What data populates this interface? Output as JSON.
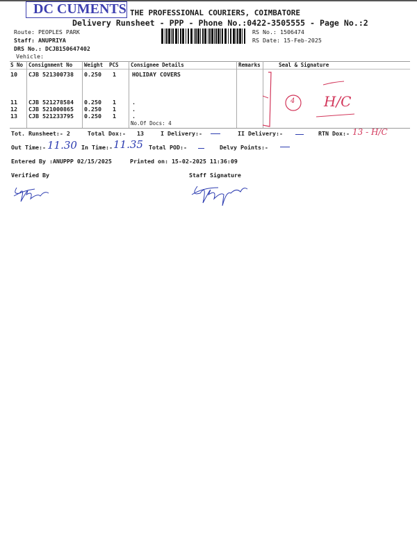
{
  "stamp": "DC CUMENTS",
  "header": {
    "company": "THE PROFESSIONAL COURIERS, COIMBATORE",
    "subtitle": "Delivery Runsheet - PPP - Phone No.:0422-3505555 - Page No.:2",
    "route": "Route: PEOPLES PARK",
    "staff": "Staff: ANUPRIYA",
    "drs": "DRS No.: DCJB150647402",
    "vehicle": "Vehicle:",
    "rs_no": "RS No.: 1506474",
    "rs_date": "RS Date: 15-Feb-2025"
  },
  "table": {
    "columns": [
      "S No",
      "Consignment No",
      "Weight",
      "PCS",
      "Consignee Details",
      "Remarks",
      "Seal & Signature"
    ],
    "rows": [
      {
        "sno": "10",
        "consignment": "CJB 521300738",
        "weight": "0.250",
        "pcs": "1",
        "consignee": "HOLIDAY COVERS"
      },
      {
        "sno": "11",
        "consignment": "CJB 521278584",
        "weight": "0.250",
        "pcs": "1",
        "consignee": "."
      },
      {
        "sno": "12",
        "consignment": "CJB 521000865",
        "weight": "0.250",
        "pcs": "1",
        "consignee": "."
      },
      {
        "sno": "13",
        "consignment": "CJB 521233795",
        "weight": "0.250",
        "pcs": "1",
        "consignee": "."
      }
    ],
    "no_of_docs": "No.Of Docs: 4",
    "handwritten_seal": "H/C",
    "handwritten_circle": "4"
  },
  "totals": {
    "tot_runsheet": "Tot. Runsheet:- 2",
    "total_dox": "Total Dox:-",
    "total_dox_value": "13",
    "i_delivery": "I Delivery:-",
    "ii_delivery": "II Delivery:-",
    "rtn_dox": "RTN Dox:-",
    "rtn_dox_hand": "13 - H/C",
    "out_time": "Out Time:-",
    "out_time_hand": "11.30",
    "in_time": "In Time:-",
    "in_time_hand": "11.35",
    "total_pod": "Total POD:-",
    "delvy_points": "Delvy Points:-"
  },
  "footer": {
    "entered_by": "Entered By :ANUPPP 02/15/2025",
    "printed_on": "Printed on: 15-02-2025 11:36:09",
    "verified_by": "Verified By",
    "staff_signature": "Staff Signature"
  },
  "colors": {
    "stamp": "#3d3fb0",
    "ink_blue": "#2b3bb0",
    "ink_red": "#d2365a"
  }
}
